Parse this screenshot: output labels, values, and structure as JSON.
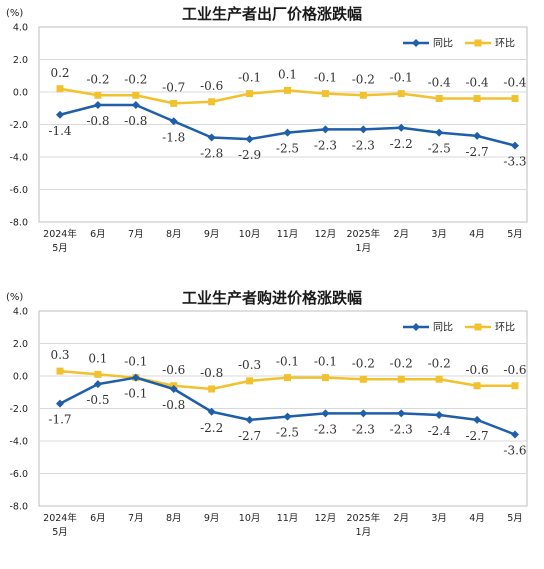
{
  "chart_data": [
    {
      "type": "line",
      "title": "工业生产者出厂价格涨跌幅",
      "unit": "(%)",
      "categories": [
        "2024年|5月",
        "6月",
        "7月",
        "8月",
        "9月",
        "10月",
        "11月",
        "12月",
        "2025年|1月",
        "2月",
        "3月",
        "4月",
        "5月"
      ],
      "ylim": [
        -8.0,
        4.0
      ],
      "yticks": [
        "4.0",
        "2.0",
        "0.0",
        "-2.0",
        "-4.0",
        "-6.0",
        "-8.0"
      ],
      "legend_position": "top-right",
      "series": [
        {
          "name": "同比",
          "color": "#1f5ea8",
          "marker": "diamond",
          "values": [
            -1.4,
            -0.8,
            -0.8,
            -1.8,
            -2.8,
            -2.9,
            -2.5,
            -2.3,
            -2.3,
            -2.2,
            -2.5,
            -2.7,
            -3.3
          ],
          "labels": [
            "-1.4",
            "-0.8",
            "-0.8",
            "-1.8",
            "-2.8",
            "-2.9",
            "-2.5",
            "-2.3",
            "-2.3",
            "-2.2",
            "-2.5",
            "-2.7",
            "-3.3"
          ]
        },
        {
          "name": "环比",
          "color": "#f2c12e",
          "marker": "square",
          "values": [
            0.2,
            -0.2,
            -0.2,
            -0.7,
            -0.6,
            -0.1,
            0.1,
            -0.1,
            -0.2,
            -0.1,
            -0.4,
            -0.4,
            -0.4
          ],
          "labels": [
            "0.2",
            "-0.2",
            "-0.2",
            "-0.7",
            "-0.6",
            "-0.1",
            "0.1",
            "-0.1",
            "-0.2",
            "-0.1",
            "-0.4",
            "-0.4",
            "-0.4"
          ]
        }
      ]
    },
    {
      "type": "line",
      "title": "工业生产者购进价格涨跌幅",
      "unit": "(%)",
      "categories": [
        "2024年|5月",
        "6月",
        "7月",
        "8月",
        "9月",
        "10月",
        "11月",
        "12月",
        "2025年|1月",
        "2月",
        "3月",
        "4月",
        "5月"
      ],
      "ylim": [
        -8.0,
        4.0
      ],
      "yticks": [
        "4.0",
        "2.0",
        "0.0",
        "-2.0",
        "-4.0",
        "-6.0",
        "-8.0"
      ],
      "legend_position": "top-right",
      "series": [
        {
          "name": "同比",
          "color": "#1f5ea8",
          "marker": "diamond",
          "values": [
            -1.7,
            -0.5,
            -0.1,
            -0.8,
            -2.2,
            -2.7,
            -2.5,
            -2.3,
            -2.3,
            -2.3,
            -2.4,
            -2.7,
            -3.6
          ],
          "labels": [
            "-1.7",
            "-0.5",
            "-0.1",
            "-0.8",
            "-2.2",
            "-2.7",
            "-2.5",
            "-2.3",
            "-2.3",
            "-2.3",
            "-2.4",
            "-2.7",
            "-3.6"
          ]
        },
        {
          "name": "环比",
          "color": "#f2c12e",
          "marker": "square",
          "values": [
            0.3,
            0.1,
            -0.1,
            -0.6,
            -0.8,
            -0.3,
            -0.1,
            -0.1,
            -0.2,
            -0.2,
            -0.2,
            -0.6,
            -0.6
          ],
          "labels": [
            "0.3",
            "0.1",
            "-0.1",
            "-0.6",
            "-0.8",
            "-0.3",
            "-0.1",
            "-0.1",
            "-0.2",
            "-0.2",
            "-0.2",
            "-0.6",
            "-0.6"
          ]
        }
      ]
    }
  ]
}
